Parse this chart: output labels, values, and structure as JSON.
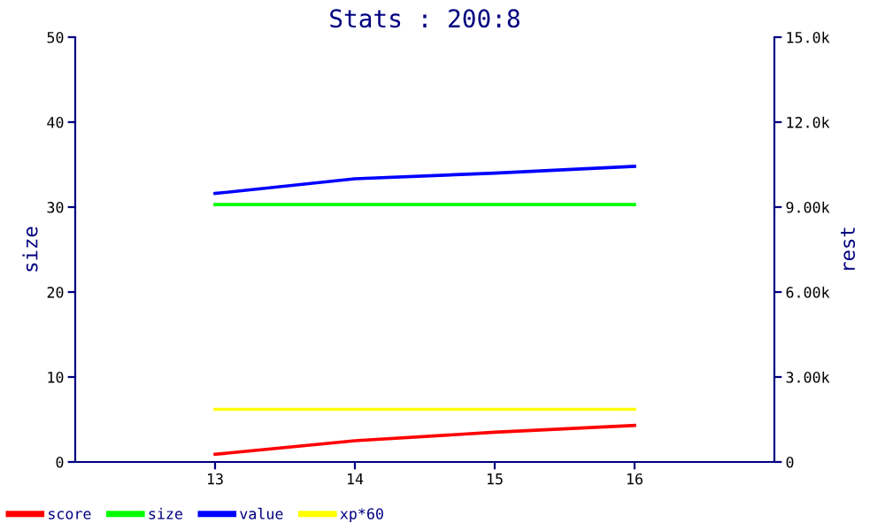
{
  "chart_data": {
    "type": "line",
    "title": "Stats : 200:8",
    "ylabel": "size",
    "y2label": "rest",
    "x": [
      13,
      14,
      15,
      16
    ],
    "xlim": [
      12,
      17
    ],
    "xticks": [
      13,
      14,
      15,
      16
    ],
    "ylim": [
      0,
      50
    ],
    "yticks": [
      0,
      10,
      20,
      30,
      40,
      50
    ],
    "y2lim": [
      0,
      15000
    ],
    "y2ticks": [
      {
        "value": 0,
        "label": "0"
      },
      {
        "value": 3000,
        "label": "3.00k"
      },
      {
        "value": 6000,
        "label": "6.00k"
      },
      {
        "value": 9000,
        "label": "9.00k"
      },
      {
        "value": 12000,
        "label": "12.0k"
      },
      {
        "value": 15000,
        "label": "15.0k"
      }
    ],
    "series": [
      {
        "name": "score",
        "color": "#ff0000",
        "values": [
          0.9,
          2.5,
          3.5,
          4.3
        ]
      },
      {
        "name": "size",
        "color": "#00ff00",
        "values": [
          30.3,
          30.3,
          30.3,
          30.3
        ]
      },
      {
        "name": "value",
        "color": "#0000ff",
        "axis": "y2",
        "values": [
          9480,
          10000,
          10200,
          10440
        ]
      },
      {
        "name": "xp*60",
        "color": "#ffff00",
        "values": [
          6.2,
          6.2,
          6.2,
          6.2
        ]
      }
    ],
    "grid": false,
    "legend": "bottom",
    "marker": "none",
    "line_style": "solid"
  }
}
